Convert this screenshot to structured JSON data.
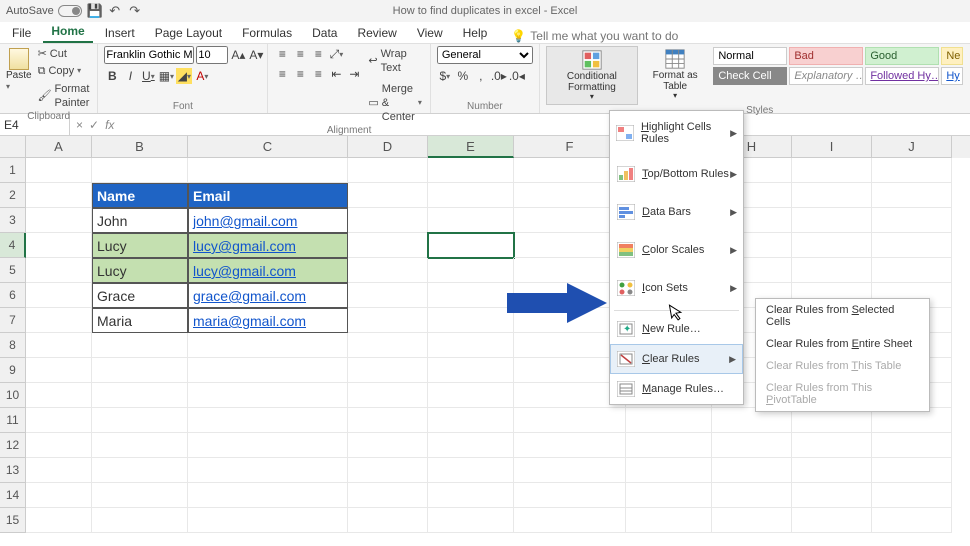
{
  "titlebar": {
    "autosave_label": "AutoSave",
    "doc_title": "How to find duplicates in excel  -  Excel"
  },
  "menus": [
    "File",
    "Home",
    "Insert",
    "Page Layout",
    "Formulas",
    "Data",
    "Review",
    "View",
    "Help"
  ],
  "tellme_placeholder": "Tell me what you want to do",
  "ribbon": {
    "clipboard": {
      "label": "Clipboard",
      "paste": "Paste",
      "cut": "Cut",
      "copy": "Copy",
      "format_painter": "Format Painter"
    },
    "font": {
      "label": "Font",
      "family": "Franklin Gothic M",
      "size": "10"
    },
    "alignment": {
      "label": "Alignment",
      "wrap": "Wrap Text",
      "merge": "Merge & Center"
    },
    "number": {
      "label": "Number",
      "format": "General"
    },
    "styles": {
      "label": "Styles",
      "cond_fmt": "Conditional Formatting",
      "fmt_table": "Format as Table",
      "cells": [
        {
          "text": "Normal",
          "bg": "#ffffff",
          "color": "#000",
          "border": "#ccc",
          "italic": false,
          "ul": false
        },
        {
          "text": "Bad",
          "bg": "#f8d0d0",
          "color": "#a03030",
          "border": "#f0b0b0",
          "italic": false,
          "ul": false
        },
        {
          "text": "Good",
          "bg": "#d0f0d0",
          "color": "#2a6030",
          "border": "#b0e0b0",
          "italic": false,
          "ul": false
        },
        {
          "text": "Ne",
          "bg": "#fff0c0",
          "color": "#806000",
          "border": "#f0e090",
          "italic": false,
          "ul": false
        },
        {
          "text": "Check Cell",
          "bg": "#888888",
          "color": "#fff",
          "border": "#888",
          "italic": false,
          "ul": false
        },
        {
          "text": "Explanatory …",
          "bg": "#ffffff",
          "color": "#888",
          "border": "#ccc",
          "italic": true,
          "ul": false
        },
        {
          "text": "Followed Hy…",
          "bg": "#ffffff",
          "color": "#7030a0",
          "border": "#ccc",
          "italic": false,
          "ul": true
        },
        {
          "text": "Hy",
          "bg": "#ffffff",
          "color": "#1155cc",
          "border": "#ccc",
          "italic": false,
          "ul": true
        }
      ]
    }
  },
  "namebox": "E4",
  "columns": [
    "A",
    "B",
    "C",
    "D",
    "E",
    "F",
    "G",
    "H",
    "I",
    "J"
  ],
  "selected_col": "E",
  "selected_row": 4,
  "table": {
    "header_bg": "#1f64c4",
    "dup_bg": "#c4e0b0",
    "headers": [
      "Name",
      "Email"
    ],
    "rows": [
      {
        "name": "John",
        "email": "john@gmail.com",
        "dup": false
      },
      {
        "name": "Lucy",
        "email": "lucy@gmail.com",
        "dup": true
      },
      {
        "name": "Lucy",
        "email": "lucy@gmail.com",
        "dup": true
      },
      {
        "name": "Grace",
        "email": "grace@gmail.com",
        "dup": false
      },
      {
        "name": "Maria",
        "email": "maria@gmail.com",
        "dup": false
      }
    ]
  },
  "cf_menu": {
    "items": [
      {
        "pre": "H",
        "rest": "ighlight Cells Rules",
        "has_sub": true,
        "icon": "hcr"
      },
      {
        "pre": "T",
        "rest": "op/Bottom Rules",
        "has_sub": true,
        "icon": "tbr"
      },
      {
        "pre": "D",
        "rest": "ata Bars",
        "has_sub": true,
        "icon": "db"
      },
      {
        "pre": "C",
        "rest": "olor Scales",
        "has_sub": true,
        "icon": "cs"
      },
      {
        "pre": "I",
        "rest": "con Sets",
        "has_sub": true,
        "icon": "is"
      }
    ],
    "lower": [
      {
        "pre": "N",
        "rest": "ew Rule…",
        "icon": "new"
      },
      {
        "pre": "C",
        "rest": "lear Rules",
        "has_sub": true,
        "icon": "clear",
        "hover": true
      },
      {
        "pre": "M",
        "rest": "anage Rules…",
        "icon": "manage"
      }
    ]
  },
  "clear_submenu": [
    {
      "pre": "Clear Rules from ",
      "ul": "S",
      "post": "elected Cells",
      "disabled": false
    },
    {
      "pre": "Clear Rules from ",
      "ul": "E",
      "post": "ntire Sheet",
      "disabled": false
    },
    {
      "pre": "Clear Rules from ",
      "ul": "T",
      "post": "his Table",
      "disabled": true
    },
    {
      "pre": "Clear Rules from This ",
      "ul": "P",
      "post": "ivotTable",
      "disabled": true
    }
  ],
  "arrow_color": "#1f4fb0"
}
